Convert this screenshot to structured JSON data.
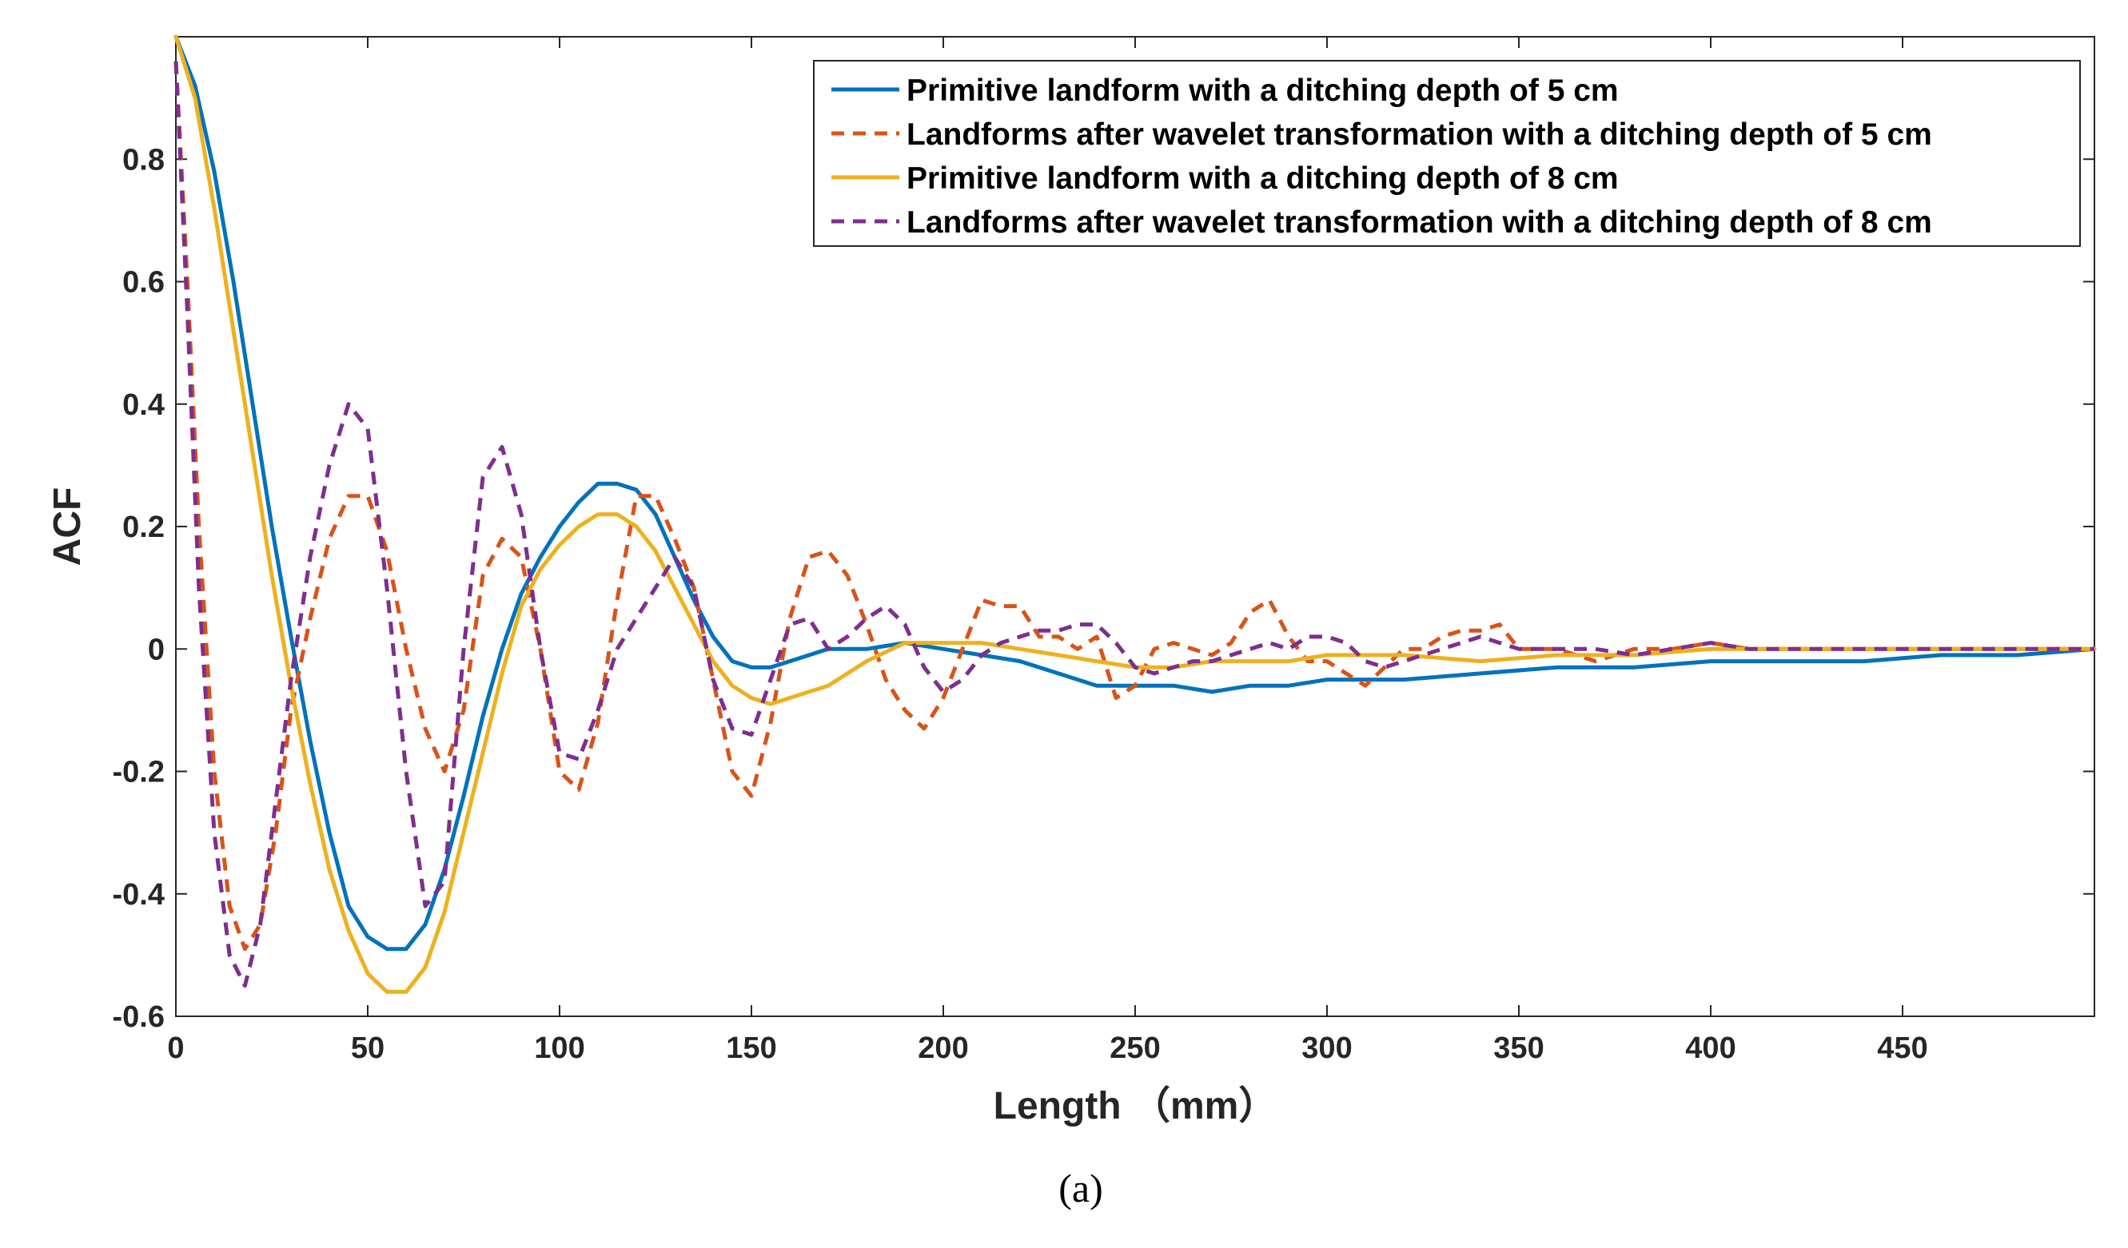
{
  "chart_data": {
    "type": "line",
    "title": "",
    "xlabel": "Length （mm）",
    "ylabel": "ACF",
    "caption": "(a)",
    "xlim": [
      0,
      500
    ],
    "ylim": [
      -0.6,
      1.0
    ],
    "xticks": [
      0,
      50,
      100,
      150,
      200,
      250,
      300,
      350,
      400,
      450
    ],
    "xtick_labels": [
      "0",
      "50",
      "100",
      "150",
      "200",
      "250",
      "300",
      "350",
      "400",
      "450"
    ],
    "yticks": [
      -0.6,
      -0.4,
      -0.2,
      0,
      0.2,
      0.4,
      0.6,
      0.8
    ],
    "ytick_labels": [
      "-0.6",
      "-0.4",
      "-0.2",
      "0",
      "0.2",
      "0.4",
      "0.6",
      "0.8"
    ],
    "grid": false,
    "legend_position": "top-right",
    "series": [
      {
        "name": "Primitive landform with a ditching depth of 5 cm",
        "color": "#0072BD",
        "dash": "solid",
        "x": [
          0,
          5,
          10,
          15,
          20,
          25,
          30,
          35,
          40,
          45,
          50,
          55,
          60,
          65,
          70,
          75,
          80,
          85,
          90,
          95,
          100,
          105,
          110,
          115,
          120,
          125,
          130,
          135,
          140,
          145,
          150,
          155,
          160,
          170,
          180,
          190,
          200,
          210,
          220,
          230,
          240,
          250,
          260,
          270,
          280,
          290,
          300,
          320,
          340,
          360,
          380,
          400,
          420,
          440,
          460,
          480,
          500
        ],
        "y": [
          1.0,
          0.92,
          0.78,
          0.6,
          0.4,
          0.2,
          0.02,
          -0.15,
          -0.3,
          -0.42,
          -0.47,
          -0.49,
          -0.49,
          -0.45,
          -0.36,
          -0.24,
          -0.11,
          0.0,
          0.09,
          0.15,
          0.2,
          0.24,
          0.27,
          0.27,
          0.26,
          0.22,
          0.15,
          0.08,
          0.02,
          -0.02,
          -0.03,
          -0.03,
          -0.02,
          0.0,
          0.0,
          0.01,
          0.0,
          -0.01,
          -0.02,
          -0.04,
          -0.06,
          -0.06,
          -0.06,
          -0.07,
          -0.06,
          -0.06,
          -0.05,
          -0.05,
          -0.04,
          -0.03,
          -0.03,
          -0.02,
          -0.02,
          -0.02,
          -0.01,
          -0.01,
          0.0
        ]
      },
      {
        "name": "Landforms after wavelet transformation with a ditching depth of 5 cm",
        "color": "#D95319",
        "dash": "dashed",
        "x": [
          0,
          3,
          6,
          10,
          14,
          18,
          22,
          26,
          30,
          35,
          40,
          45,
          50,
          55,
          60,
          65,
          70,
          75,
          80,
          85,
          90,
          95,
          100,
          105,
          110,
          115,
          120,
          125,
          130,
          135,
          140,
          145,
          150,
          155,
          160,
          165,
          170,
          175,
          180,
          185,
          190,
          195,
          200,
          205,
          210,
          215,
          220,
          225,
          230,
          235,
          240,
          245,
          250,
          255,
          260,
          265,
          270,
          275,
          280,
          285,
          290,
          295,
          300,
          305,
          310,
          315,
          320,
          325,
          330,
          335,
          340,
          345,
          350,
          360,
          370,
          380,
          390,
          400,
          410,
          420,
          430,
          440,
          450,
          460,
          470,
          480,
          490,
          500
        ],
        "y": [
          0.96,
          0.6,
          0.2,
          -0.2,
          -0.42,
          -0.49,
          -0.45,
          -0.3,
          -0.1,
          0.05,
          0.18,
          0.25,
          0.25,
          0.16,
          0.0,
          -0.13,
          -0.2,
          -0.1,
          0.12,
          0.18,
          0.15,
          0.0,
          -0.2,
          -0.23,
          -0.12,
          0.08,
          0.25,
          0.25,
          0.18,
          0.1,
          -0.05,
          -0.2,
          -0.24,
          -0.12,
          0.05,
          0.15,
          0.16,
          0.12,
          0.04,
          -0.05,
          -0.1,
          -0.13,
          -0.08,
          0.0,
          0.08,
          0.07,
          0.07,
          0.02,
          0.02,
          0.0,
          0.02,
          -0.08,
          -0.06,
          0.0,
          0.01,
          0.0,
          -0.01,
          0.01,
          0.06,
          0.08,
          0.02,
          -0.02,
          -0.02,
          -0.04,
          -0.06,
          -0.03,
          0.0,
          0.0,
          0.02,
          0.03,
          0.03,
          0.04,
          0.0,
          0.0,
          -0.02,
          0.0,
          0.0,
          0.01,
          0.0,
          0.0,
          0.0,
          0.0,
          0.0,
          0.0,
          0.0,
          0.0,
          0.0,
          0.0
        ]
      },
      {
        "name": "Primitive landform with a ditching depth of 8 cm",
        "color": "#EDB120",
        "dash": "solid",
        "x": [
          0,
          5,
          10,
          15,
          20,
          25,
          30,
          35,
          40,
          45,
          50,
          55,
          60,
          65,
          70,
          75,
          80,
          85,
          90,
          95,
          100,
          105,
          110,
          115,
          120,
          125,
          130,
          135,
          140,
          145,
          150,
          155,
          160,
          170,
          180,
          190,
          200,
          210,
          220,
          230,
          240,
          250,
          260,
          270,
          280,
          290,
          300,
          320,
          340,
          360,
          380,
          400,
          420,
          440,
          460,
          480,
          500
        ],
        "y": [
          1.0,
          0.9,
          0.72,
          0.52,
          0.32,
          0.12,
          -0.06,
          -0.22,
          -0.36,
          -0.46,
          -0.53,
          -0.56,
          -0.56,
          -0.52,
          -0.43,
          -0.3,
          -0.17,
          -0.04,
          0.07,
          0.13,
          0.17,
          0.2,
          0.22,
          0.22,
          0.2,
          0.16,
          0.1,
          0.04,
          -0.02,
          -0.06,
          -0.08,
          -0.09,
          -0.08,
          -0.06,
          -0.02,
          0.01,
          0.01,
          0.01,
          0.0,
          -0.01,
          -0.02,
          -0.03,
          -0.03,
          -0.02,
          -0.02,
          -0.02,
          -0.01,
          -0.01,
          -0.02,
          -0.01,
          -0.01,
          0.0,
          0.0,
          0.0,
          0.0,
          0.0,
          0.0
        ]
      },
      {
        "name": "Landforms after wavelet transformation with a ditching depth of 8 cm",
        "color": "#7E2F8E",
        "dash": "dashed",
        "x": [
          0,
          3,
          6,
          10,
          14,
          18,
          22,
          26,
          30,
          35,
          40,
          45,
          50,
          55,
          60,
          65,
          70,
          75,
          80,
          85,
          90,
          95,
          100,
          105,
          110,
          115,
          120,
          125,
          130,
          135,
          140,
          145,
          150,
          155,
          160,
          165,
          170,
          175,
          180,
          185,
          190,
          195,
          200,
          205,
          210,
          215,
          220,
          225,
          230,
          235,
          240,
          245,
          250,
          255,
          260,
          265,
          270,
          275,
          280,
          285,
          290,
          295,
          300,
          305,
          310,
          315,
          320,
          325,
          330,
          335,
          340,
          345,
          350,
          360,
          370,
          380,
          390,
          400,
          410,
          420,
          430,
          440,
          450,
          460,
          470,
          480,
          490,
          500
        ],
        "y": [
          0.96,
          0.55,
          0.1,
          -0.3,
          -0.5,
          -0.55,
          -0.45,
          -0.25,
          -0.05,
          0.15,
          0.3,
          0.4,
          0.36,
          0.1,
          -0.2,
          -0.42,
          -0.38,
          0.0,
          0.28,
          0.33,
          0.22,
          0.0,
          -0.17,
          -0.18,
          -0.1,
          0.0,
          0.05,
          0.1,
          0.15,
          0.1,
          -0.05,
          -0.13,
          -0.14,
          -0.05,
          0.04,
          0.05,
          0.0,
          0.02,
          0.05,
          0.07,
          0.04,
          -0.03,
          -0.07,
          -0.05,
          -0.01,
          0.01,
          0.02,
          0.03,
          0.03,
          0.04,
          0.04,
          0.01,
          -0.03,
          -0.04,
          -0.03,
          -0.02,
          -0.02,
          -0.01,
          0.0,
          0.01,
          0.0,
          0.02,
          0.02,
          0.01,
          -0.02,
          -0.03,
          -0.02,
          -0.01,
          0.0,
          0.01,
          0.02,
          0.01,
          0.0,
          0.0,
          0.0,
          -0.01,
          0.0,
          0.01,
          0.0,
          0.0,
          0.0,
          0.0,
          0.0,
          0.0,
          0.0,
          0.0,
          0.0,
          0.0
        ]
      }
    ]
  }
}
